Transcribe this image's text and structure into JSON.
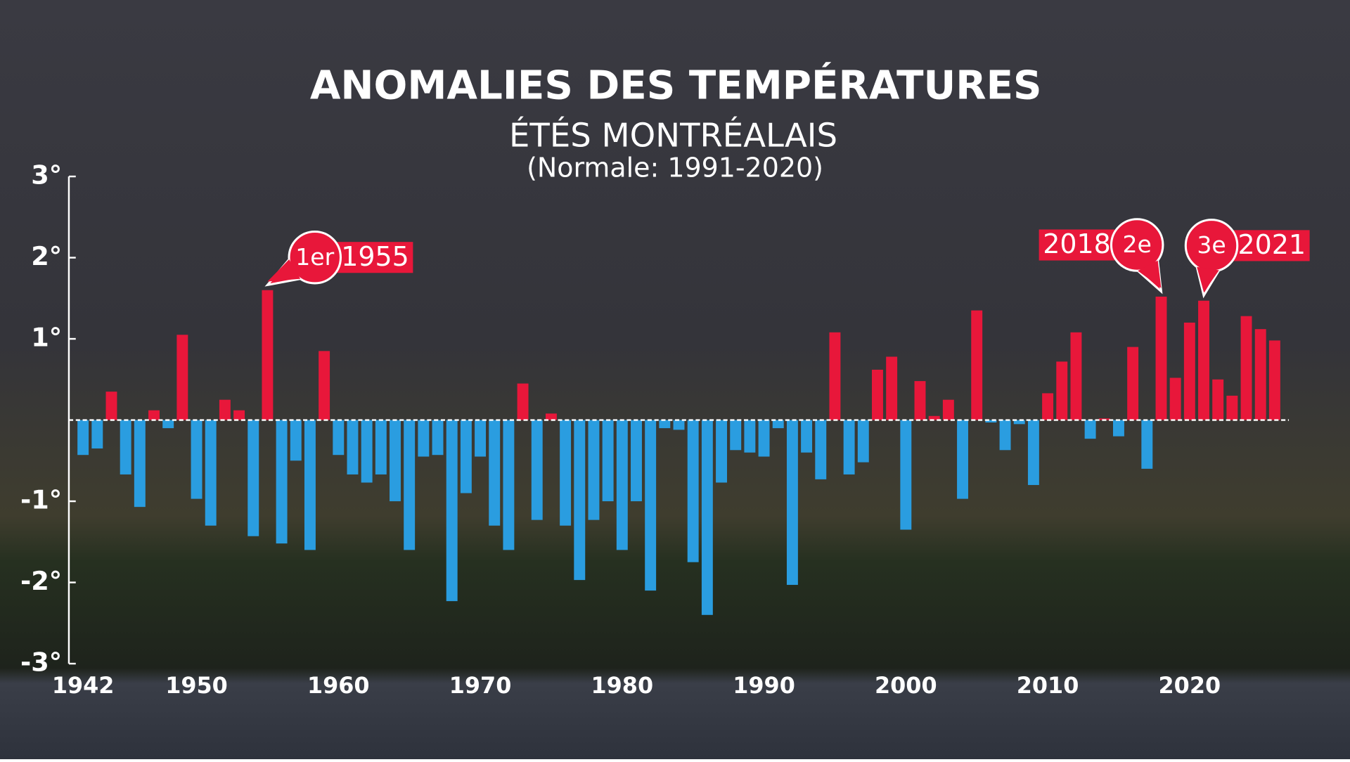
{
  "chart_data": {
    "type": "bar",
    "title": "ANOMALIES DES TEMPÉRATURES",
    "subtitle": "ÉTÉS MONTRÉALAIS",
    "note": "(Normale: 1991-2020)",
    "x": [
      1942,
      1943,
      1944,
      1945,
      1946,
      1947,
      1948,
      1949,
      1950,
      1951,
      1952,
      1953,
      1954,
      1955,
      1956,
      1957,
      1958,
      1959,
      1960,
      1961,
      1962,
      1963,
      1964,
      1965,
      1966,
      1967,
      1968,
      1969,
      1970,
      1971,
      1972,
      1973,
      1974,
      1975,
      1976,
      1977,
      1978,
      1979,
      1980,
      1981,
      1982,
      1983,
      1984,
      1985,
      1986,
      1987,
      1988,
      1989,
      1990,
      1991,
      1992,
      1993,
      1994,
      1995,
      1996,
      1997,
      1998,
      1999,
      2000,
      2001,
      2002,
      2003,
      2004,
      2005,
      2006,
      2007,
      2008,
      2009,
      2010,
      2011,
      2012,
      2013,
      2014,
      2015,
      2016,
      2017,
      2018,
      2019,
      2020,
      2021,
      2022,
      2023,
      2024,
      2025,
      2026
    ],
    "values": [
      -0.43,
      -0.35,
      0.35,
      -0.67,
      -1.07,
      0.12,
      -0.1,
      1.05,
      -0.97,
      -1.3,
      0.25,
      0.12,
      -1.43,
      1.6,
      -1.52,
      -0.5,
      -1.6,
      0.85,
      -0.43,
      -0.67,
      -0.77,
      -0.67,
      -1.0,
      -1.6,
      -0.45,
      -0.43,
      -2.23,
      -0.9,
      -0.45,
      -1.3,
      -1.6,
      0.45,
      -1.23,
      0.08,
      -1.3,
      -1.97,
      -1.23,
      -1.0,
      -1.6,
      -1.0,
      -2.1,
      -0.1,
      -0.12,
      -1.75,
      -2.4,
      -0.77,
      -0.37,
      -0.4,
      -0.45,
      -0.1,
      -2.03,
      -0.4,
      -0.73,
      1.08,
      -0.67,
      -0.52,
      0.62,
      0.78,
      -1.35,
      0.48,
      0.05,
      0.25,
      -0.97,
      1.35,
      -0.03,
      -0.37,
      -0.05,
      -0.8,
      0.33,
      0.72,
      1.08,
      -0.23,
      0.02,
      -0.2,
      0.9,
      -0.6,
      1.52,
      0.52,
      1.2,
      1.47,
      0.5,
      0.3,
      1.28,
      1.12,
      0.98
    ],
    "positive_color": "#e8173a",
    "negative_color": "#2a9de0",
    "xlim": [
      1941,
      2027
    ],
    "xticks": [
      1942,
      1950,
      1960,
      1970,
      1980,
      1990,
      2000,
      2010,
      2020
    ],
    "ylim": [
      -3,
      3
    ],
    "yticks": [
      {
        "value": -3,
        "label": "-3°"
      },
      {
        "value": -2,
        "label": "-2°"
      },
      {
        "value": -1,
        "label": "-1°"
      },
      {
        "value": 1,
        "label": "1°"
      },
      {
        "value": 2,
        "label": "2°"
      },
      {
        "value": 3,
        "label": "3°"
      }
    ],
    "annotations": [
      {
        "rank": "1er",
        "label": "1955",
        "x": 1955
      },
      {
        "rank": "2e",
        "label": "2018",
        "x": 2018
      },
      {
        "rank": "3e",
        "label": "2021",
        "x": 2021
      }
    ]
  }
}
